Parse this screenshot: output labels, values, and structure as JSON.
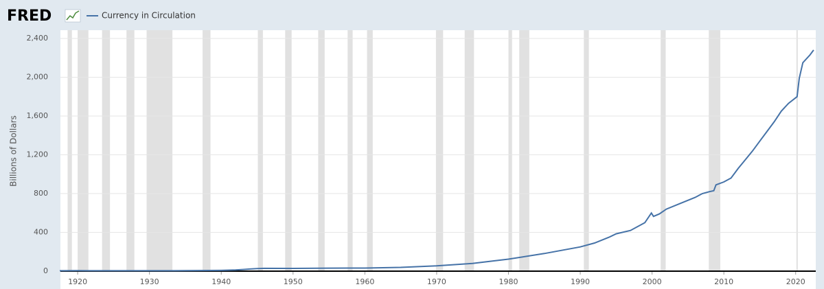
{
  "chart_data": {
    "type": "line",
    "logo": "FRED",
    "y_label": "Billions of Dollars",
    "x": [
      1917.5,
      1918,
      1920,
      1925,
      1930,
      1935,
      1940,
      1942,
      1943,
      1944,
      1945,
      1946,
      1950,
      1955,
      1960,
      1965,
      1970,
      1975,
      1980,
      1985,
      1990,
      1992,
      1994,
      1995,
      1997,
      1999,
      1999.9,
      2000.2,
      2001,
      2002,
      2004,
      2006,
      2007,
      2008,
      2008.6,
      2008.9,
      2010,
      2011,
      2012,
      2013,
      2014,
      2015,
      2016,
      2017,
      2018,
      2019,
      2020.2,
      2020.5,
      2021,
      2022,
      2022.5
    ],
    "series": [
      {
        "name": "Currency in Circulation",
        "color": "#4572a7",
        "values": [
          4,
          4,
          5,
          4,
          4,
          5,
          8,
          12,
          17,
          22,
          27,
          29,
          28,
          31,
          32,
          39,
          55,
          80,
          124,
          182,
          250,
          290,
          350,
          385,
          420,
          500,
          600,
          565,
          590,
          640,
          700,
          760,
          800,
          820,
          830,
          890,
          920,
          960,
          1060,
          1150,
          1240,
          1340,
          1440,
          1540,
          1650,
          1730,
          1800,
          1990,
          2150,
          2230,
          2280
        ]
      }
    ],
    "recessions": [
      [
        1918.6,
        1919.2
      ],
      [
        1920.0,
        1921.5
      ],
      [
        1923.4,
        1924.5
      ],
      [
        1926.8,
        1927.9
      ],
      [
        1929.6,
        1933.2
      ],
      [
        1937.4,
        1938.5
      ],
      [
        1945.1,
        1945.8
      ],
      [
        1948.9,
        1949.8
      ],
      [
        1953.5,
        1954.4
      ],
      [
        1957.6,
        1958.3
      ],
      [
        1960.3,
        1961.1
      ],
      [
        1969.9,
        1970.9
      ],
      [
        1973.9,
        1975.2
      ],
      [
        1980.0,
        1980.5
      ],
      [
        1981.5,
        1982.9
      ],
      [
        1990.5,
        1991.2
      ],
      [
        2001.2,
        2001.9
      ],
      [
        2007.9,
        2009.5
      ],
      [
        2020.1,
        2020.3
      ]
    ],
    "recession_color": "#e1e1e1",
    "xlim": [
      1917.6,
      2022.8
    ],
    "ylim": [
      0,
      2400
    ],
    "xticks": [
      1920,
      1930,
      1940,
      1950,
      1960,
      1970,
      1980,
      1990,
      2000,
      2010,
      2020
    ],
    "yticks": [
      0,
      400,
      800,
      {
        "value": 1200,
        "label": "1,200"
      },
      {
        "value": 1600,
        "label": "1,600"
      },
      {
        "value": 2000,
        "label": "2,000"
      },
      {
        "value": 2400,
        "label": "2,400"
      }
    ],
    "grid": true
  }
}
